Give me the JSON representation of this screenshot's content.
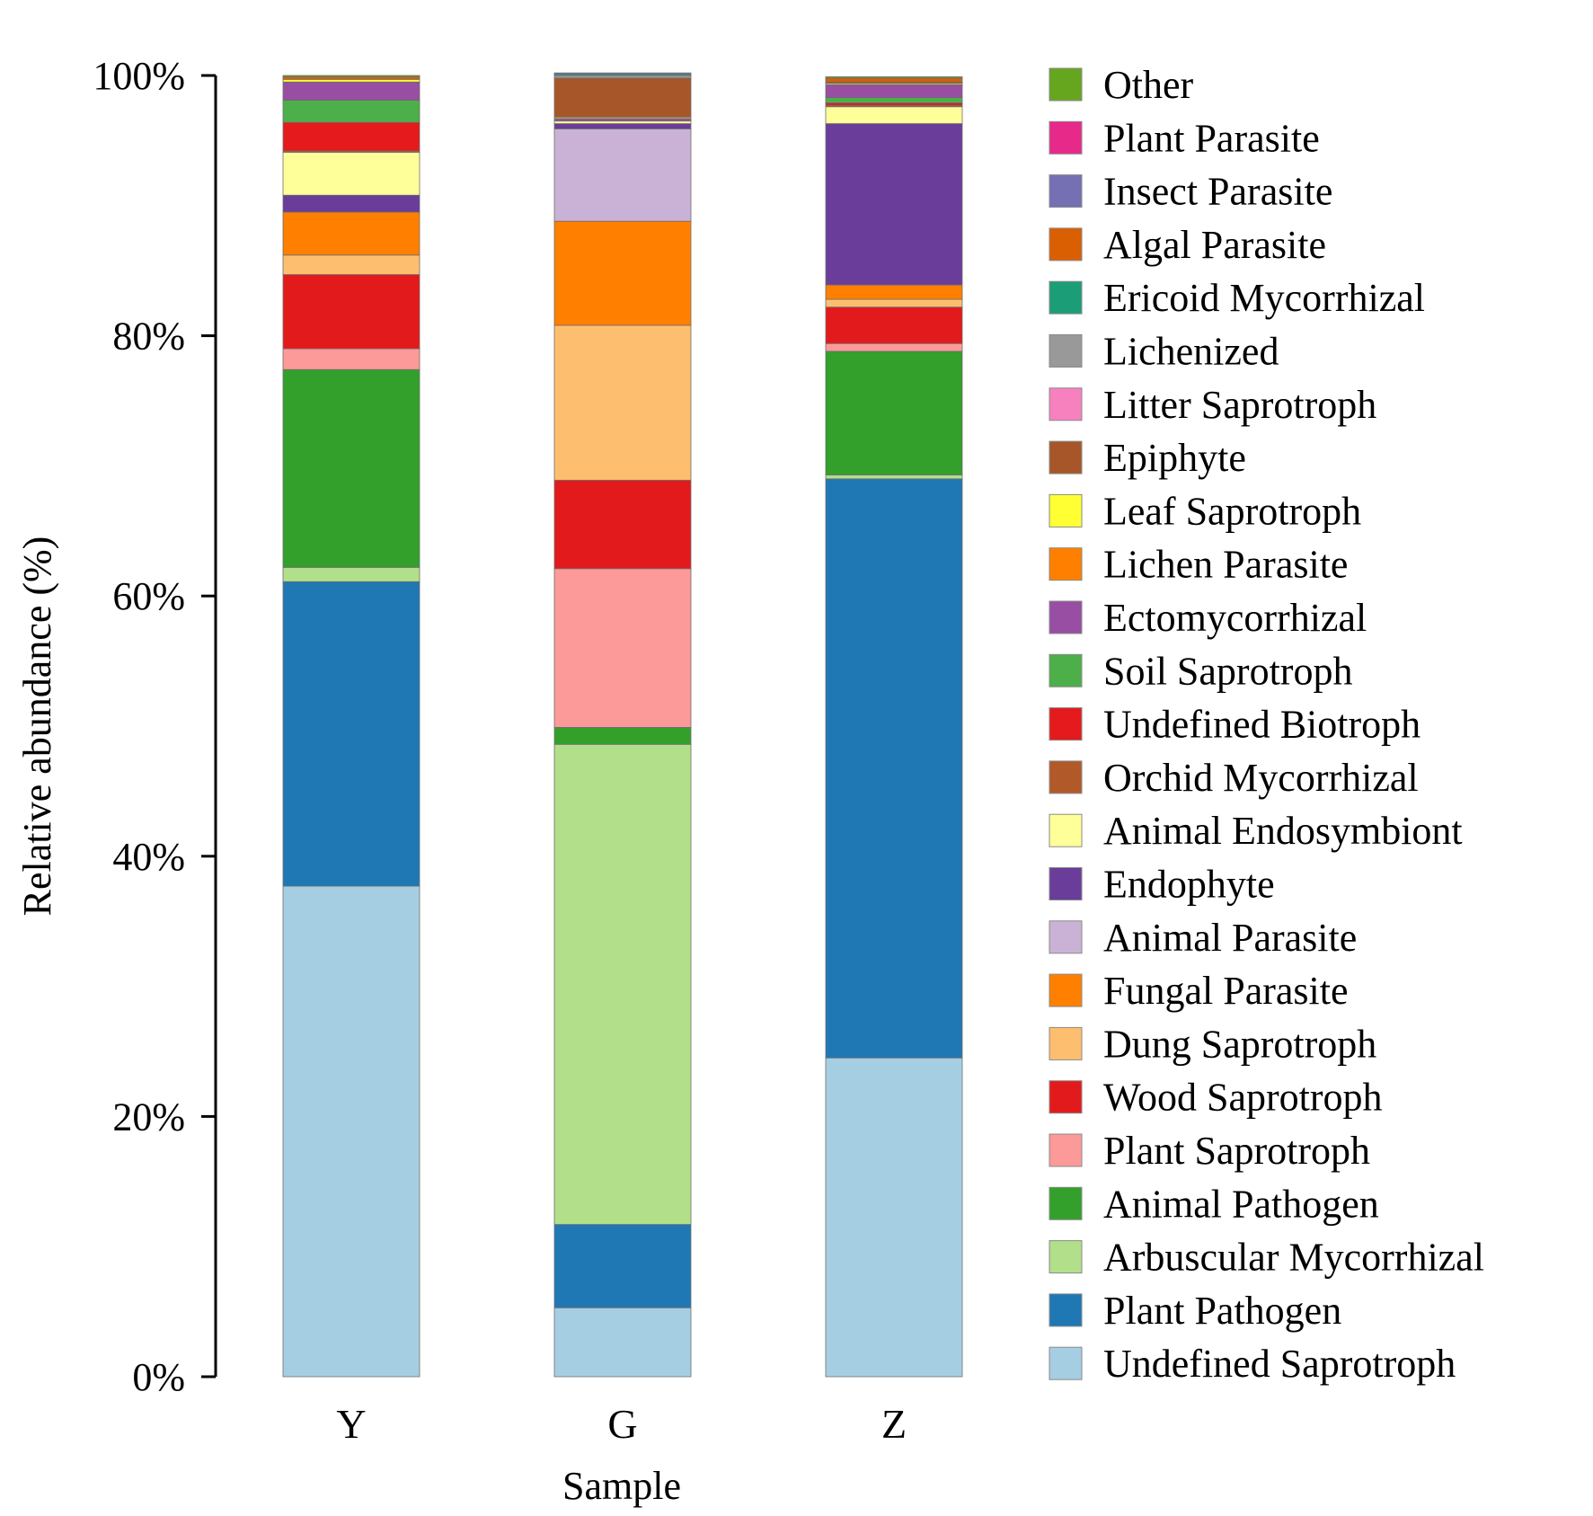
{
  "chart_data": {
    "type": "bar",
    "stacked": true,
    "percent": true,
    "title": "",
    "xlabel": "Sample",
    "ylabel": "Relative abundance (%)",
    "ylim": [
      0,
      100
    ],
    "yticks": [
      0,
      20,
      40,
      60,
      80,
      100
    ],
    "ytick_labels": [
      "0%",
      "20%",
      "40%",
      "60%",
      "80%",
      "100%"
    ],
    "categories": [
      "Y",
      "G",
      "Z"
    ],
    "legend_position": "right",
    "series": [
      {
        "name": "Undefined Saprotroph",
        "color": "#a6cee3",
        "values": [
          37.7,
          5.3,
          24.5
        ]
      },
      {
        "name": "Plant Pathogen",
        "color": "#1f78b4",
        "values": [
          23.4,
          6.4,
          44.5
        ]
      },
      {
        "name": "Arbuscular Mycorrhizal",
        "color": "#b2df8a",
        "values": [
          1.1,
          36.9,
          0.3
        ]
      },
      {
        "name": "Animal Pathogen",
        "color": "#33a02c",
        "values": [
          15.2,
          1.3,
          9.5
        ]
      },
      {
        "name": "Plant Saprotroph",
        "color": "#fb9a99",
        "values": [
          1.6,
          12.2,
          0.6
        ]
      },
      {
        "name": "Wood Saprotroph",
        "color": "#e31a1c",
        "values": [
          5.7,
          6.8,
          2.8
        ]
      },
      {
        "name": "Dung Saprotroph",
        "color": "#fdbf6f",
        "values": [
          1.5,
          11.9,
          0.6
        ]
      },
      {
        "name": "Fungal Parasite",
        "color": "#ff7f00",
        "values": [
          3.3,
          8.0,
          1.1
        ]
      },
      {
        "name": "Animal Parasite",
        "color": "#cab2d6",
        "values": [
          0.0,
          7.1,
          0.0
        ]
      },
      {
        "name": "Endophyte",
        "color": "#6a3d9a",
        "values": [
          1.3,
          0.4,
          12.4
        ]
      },
      {
        "name": "Animal Endosymbiont",
        "color": "#ffff99",
        "values": [
          3.3,
          0.2,
          1.3
        ]
      },
      {
        "name": "Orchid Mycorrhizal",
        "color": "#b15928",
        "values": [
          0.1,
          0.0,
          0.1
        ]
      },
      {
        "name": "Undefined Biotroph",
        "color": "#e41a1c",
        "values": [
          2.2,
          0.0,
          0.2
        ]
      },
      {
        "name": "Soil Saprotroph",
        "color": "#4daf4a",
        "values": [
          1.7,
          0.0,
          0.4
        ]
      },
      {
        "name": "Ectomycorrhizal",
        "color": "#984ea3",
        "values": [
          1.4,
          0.2,
          1.0
        ]
      },
      {
        "name": "Lichen Parasite",
        "color": "#ff7f00",
        "values": [
          0.0,
          0.0,
          0.0
        ]
      },
      {
        "name": "Leaf Saprotroph",
        "color": "#ffff33",
        "values": [
          0.2,
          0.1,
          0.1
        ]
      },
      {
        "name": "Epiphyte",
        "color": "#a65628",
        "values": [
          0.0,
          3.0,
          0.1
        ]
      },
      {
        "name": "Litter Saprotroph",
        "color": "#f781bf",
        "values": [
          0.0,
          0.0,
          0.0
        ]
      },
      {
        "name": "Lichenized",
        "color": "#999999",
        "values": [
          0.0,
          0.2,
          0.0
        ]
      },
      {
        "name": "Ericoid Mycorrhizal",
        "color": "#1b9e77",
        "values": [
          0.0,
          0.1,
          0.0
        ]
      },
      {
        "name": "Algal Parasite",
        "color": "#d95f02",
        "values": [
          0.2,
          0.0,
          0.3
        ]
      },
      {
        "name": "Insect Parasite",
        "color": "#7570b3",
        "values": [
          0.0,
          0.1,
          0.0
        ]
      },
      {
        "name": "Plant Parasite",
        "color": "#e7298a",
        "values": [
          0.0,
          0.0,
          0.0
        ]
      },
      {
        "name": "Other",
        "color": "#66a61e",
        "values": [
          0.1,
          0.0,
          0.1
        ]
      }
    ]
  }
}
